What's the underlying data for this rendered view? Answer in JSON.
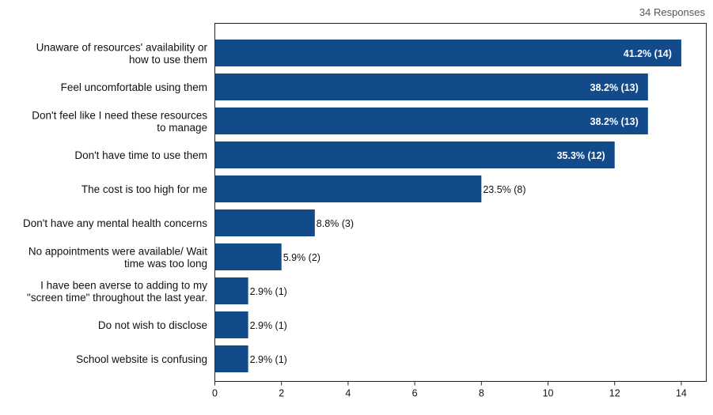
{
  "responses_label": "34 Responses",
  "chart_data": {
    "type": "bar",
    "orientation": "horizontal",
    "categories": [
      [
        "Unaware of resources' availability or",
        "how to use them"
      ],
      [
        "Feel uncomfortable using them"
      ],
      [
        "Don't feel like I need these resources",
        "to manage"
      ],
      [
        "Don't have time to use them"
      ],
      [
        "The cost is too high for me"
      ],
      [
        "Don't have any mental health concerns"
      ],
      [
        "No appointments were available/ Wait",
        "time was too long"
      ],
      [
        "I have been averse to adding to my",
        "\"screen time\" throughout the last year."
      ],
      [
        "Do not wish to disclose"
      ],
      [
        "School website is confusing"
      ]
    ],
    "values": [
      14,
      13,
      13,
      12,
      8,
      3,
      2,
      1,
      1,
      1
    ],
    "data_labels": [
      "41.2% (14)",
      "38.2% (13)",
      "38.2% (13)",
      "35.3% (12)",
      "23.5% (8)",
      "8.8% (3)",
      "5.9% (2)",
      "2.9% (1)",
      "2.9% (1)",
      "2.9% (1)"
    ],
    "xlim": [
      0,
      14.75
    ],
    "xticks": [
      0,
      2,
      4,
      6,
      8,
      10,
      12,
      14
    ],
    "bar_color": "#124a8a",
    "grid": false
  }
}
